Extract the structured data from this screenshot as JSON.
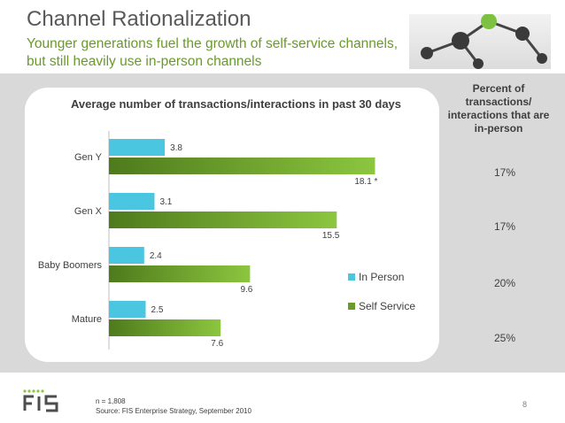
{
  "slide": {
    "title": "Channel Rationalization",
    "subtitle": "Younger generations fuel the growth of self-service channels, but still heavily use in-person channels",
    "percent_header": "Percent of transactions/ interactions that are in-person",
    "percent_values": [
      "17%",
      "17%",
      "20%",
      "25%"
    ],
    "footer_n": "n = 1,808",
    "footer_source": "Source: FIS Enterprise Strategy, September 2010",
    "page_number": "8",
    "logo_text": "FIS"
  },
  "chart_data": {
    "type": "bar",
    "orientation": "horizontal",
    "title": "Average number of transactions/interactions in past 30 days",
    "categories": [
      "Gen Y",
      "Gen X",
      "Baby Boomers",
      "Mature"
    ],
    "series": [
      {
        "name": "In Person",
        "values": [
          3.8,
          3.1,
          2.4,
          2.5
        ],
        "color": "#4bc6e0"
      },
      {
        "name": "Self Service",
        "values": [
          18.1,
          15.5,
          9.6,
          7.6
        ],
        "color": "#6a9a2a"
      }
    ],
    "data_labels": [
      [
        "3.8",
        "3.1",
        "2.4",
        "2.5"
      ],
      [
        "18.1 *",
        "15.5",
        "9.6",
        "7.6"
      ]
    ],
    "xlim": [
      0,
      20
    ],
    "grid": false,
    "legend_position": "right"
  }
}
